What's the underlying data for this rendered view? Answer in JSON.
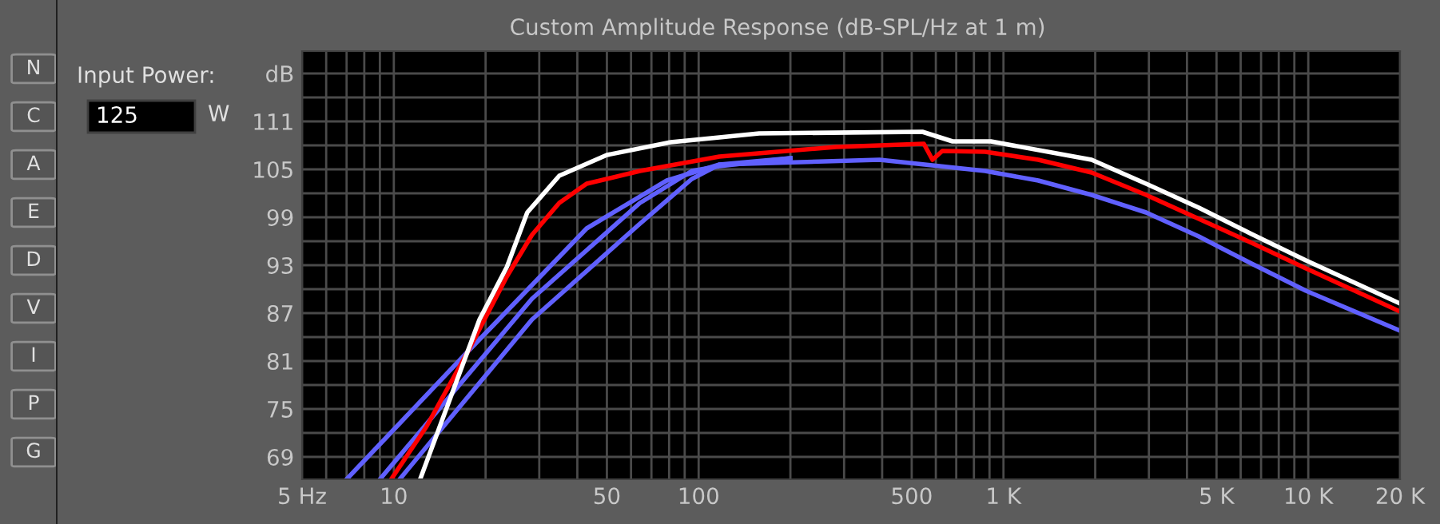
{
  "chart_data": {
    "type": "line",
    "title": "Custom Amplitude Response (dB-SPL/Hz at 1 m)",
    "annotations": [
      "Input Power:",
      "125",
      "W",
      "N",
      "C",
      "A",
      "E",
      "D",
      "V",
      "I",
      "P",
      "G"
    ],
    "log": "x",
    "grid": true,
    "legend": false,
    "marker": "none",
    "line_style": "solid",
    "xlim": [
      5,
      20000
    ],
    "ylim": [
      66.2,
      119.8
    ],
    "xticks": [
      {
        "value": 5,
        "label": "5 Hz"
      },
      {
        "value": 6,
        "label": null
      },
      {
        "value": 7,
        "label": null
      },
      {
        "value": 8,
        "label": null
      },
      {
        "value": 9,
        "label": null
      },
      10,
      {
        "value": 20,
        "label": null
      },
      {
        "value": 30,
        "label": null
      },
      {
        "value": 40,
        "label": null
      },
      50,
      {
        "value": 60,
        "label": null
      },
      {
        "value": 70,
        "label": null
      },
      {
        "value": 80,
        "label": null
      },
      {
        "value": 90,
        "label": null
      },
      100,
      {
        "value": 200,
        "label": null
      },
      {
        "value": 300,
        "label": null
      },
      {
        "value": 400,
        "label": null
      },
      500,
      {
        "value": 600,
        "label": null
      },
      {
        "value": 700,
        "label": null
      },
      {
        "value": 800,
        "label": null
      },
      {
        "value": 900,
        "label": null
      },
      {
        "value": 1000,
        "label": "1 K"
      },
      {
        "value": 2000,
        "label": null
      },
      {
        "value": 3000,
        "label": null
      },
      {
        "value": 4000,
        "label": null
      },
      {
        "value": 5000,
        "label": "5 K"
      },
      {
        "value": 6000,
        "label": null
      },
      {
        "value": 7000,
        "label": null
      },
      {
        "value": 8000,
        "label": null
      },
      {
        "value": 9000,
        "label": null
      },
      {
        "value": 10000,
        "label": "10 K"
      },
      {
        "value": 20000,
        "label": "20 K"
      }
    ],
    "yticks": [
      69,
      {
        "value": 72,
        "label": null
      },
      75,
      {
        "value": 78,
        "label": null
      },
      81,
      {
        "value": 84,
        "label": null
      },
      87,
      {
        "value": 90,
        "label": null
      },
      93,
      {
        "value": 96,
        "label": null
      },
      99,
      {
        "value": 102,
        "label": null
      },
      105,
      {
        "value": 108,
        "label": null
      },
      111,
      {
        "value": 114,
        "label": null
      },
      {
        "value": 117,
        "label": "dB"
      }
    ],
    "series": [
      {
        "color": "#6060ff",
        "x": [
          7.0,
          17.5,
          42.9,
          78.6,
          117,
          392,
          870,
          1301,
          1946,
          2937,
          4374,
          6516,
          9822,
          20000
        ],
        "values": [
          66.2,
          82.2,
          97.6,
          103.6,
          105.6,
          106.2,
          104.8,
          103.6,
          101.8,
          99.6,
          96.6,
          93.2,
          89.8,
          84.8
        ]
      },
      {
        "color": "#6060ff",
        "x": [
          9.0,
          28.4,
          64.2,
          95,
          117,
          200
        ],
        "values": [
          66.2,
          88.8,
          100.8,
          104.8,
          105.4,
          106.4
        ]
      },
      {
        "color": "#6060ff",
        "x": [
          10.45,
          28.4,
          64.2,
          95,
          117,
          200
        ],
        "values": [
          66.2,
          86.2,
          98.2,
          103.8,
          105.6,
          106.4
        ]
      },
      {
        "color": "#ff0000",
        "x": [
          9.8,
          12.8,
          17.5,
          23.5,
          28.4,
          34.9,
          42.9,
          64.2,
          117,
          282,
          548,
          585,
          630,
          870,
          1301,
          1946,
          2937,
          4374,
          6516,
          9822,
          20000
        ],
        "values": [
          66.2,
          72.8,
          82.2,
          91.6,
          96.8,
          100.8,
          103.2,
          104.8,
          106.6,
          107.8,
          108.2,
          106.2,
          107.3,
          107.2,
          106.2,
          104.6,
          101.8,
          98.8,
          95.8,
          92.6,
          87.2
        ]
      },
      {
        "color": "#ffffff",
        "x": [
          12.2,
          19.1,
          23.5,
          27.4,
          34.9,
          50,
          81,
          117,
          158,
          542,
          681,
          910,
          1946,
          2937,
          4374,
          6516,
          9822,
          20000
        ],
        "values": [
          66.2,
          86.2,
          92.8,
          99.6,
          104.2,
          106.8,
          108.4,
          109.0,
          109.5,
          109.7,
          108.5,
          108.5,
          106.2,
          103.2,
          100.2,
          96.9,
          93.6,
          88.2
        ]
      }
    ]
  }
}
